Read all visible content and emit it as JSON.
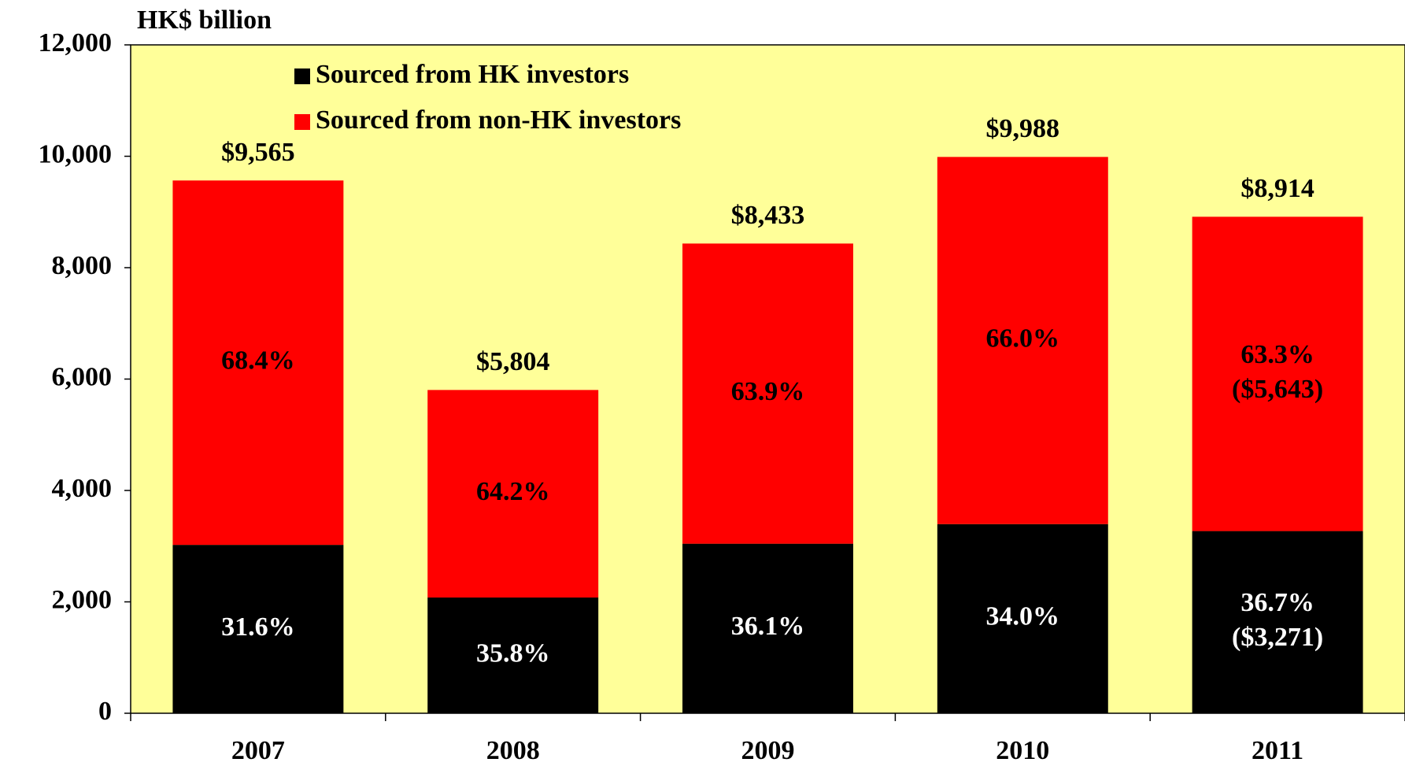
{
  "chart_data": {
    "type": "stacked_bar",
    "y_label": "HK$ billion",
    "categories": [
      "2007",
      "2008",
      "2009",
      "2010",
      "2011"
    ],
    "series": [
      {
        "name": "Sourced from HK investors",
        "color": "#000000",
        "text_color": "#ffffff",
        "values": [
          3023,
          2078,
          3044,
          3396,
          3271
        ],
        "share_labels": [
          "31.6%",
          "35.8%",
          "36.1%",
          "34.0%",
          "36.7%"
        ],
        "value_labels": [
          null,
          null,
          null,
          null,
          "($3,271)"
        ]
      },
      {
        "name": "Sourced from non-HK investors",
        "color": "#ff0000",
        "text_color": "#000000",
        "values": [
          6542,
          3726,
          5389,
          6592,
          5643
        ],
        "share_labels": [
          "68.4%",
          "64.2%",
          "63.9%",
          "66.0%",
          "63.3%"
        ],
        "value_labels": [
          null,
          null,
          null,
          null,
          "($5,643)"
        ]
      }
    ],
    "totals": [
      9565,
      5804,
      8433,
      9988,
      8914
    ],
    "total_labels": [
      "$9,565",
      "$5,804",
      "$8,433",
      "$9,988",
      "$8,914"
    ],
    "ylim": [
      0,
      12000
    ],
    "yticks": [
      0,
      {
        "value": 2000,
        "label": "2,000"
      },
      {
        "value": 4000,
        "label": "4,000"
      },
      {
        "value": 6000,
        "label": "6,000"
      },
      {
        "value": 8000,
        "label": "8,000"
      },
      {
        "value": 10000,
        "label": "10,000"
      },
      {
        "value": 12000,
        "label": "12,000"
      }
    ],
    "plot_background": "#ffff99",
    "legend": "upper left"
  }
}
